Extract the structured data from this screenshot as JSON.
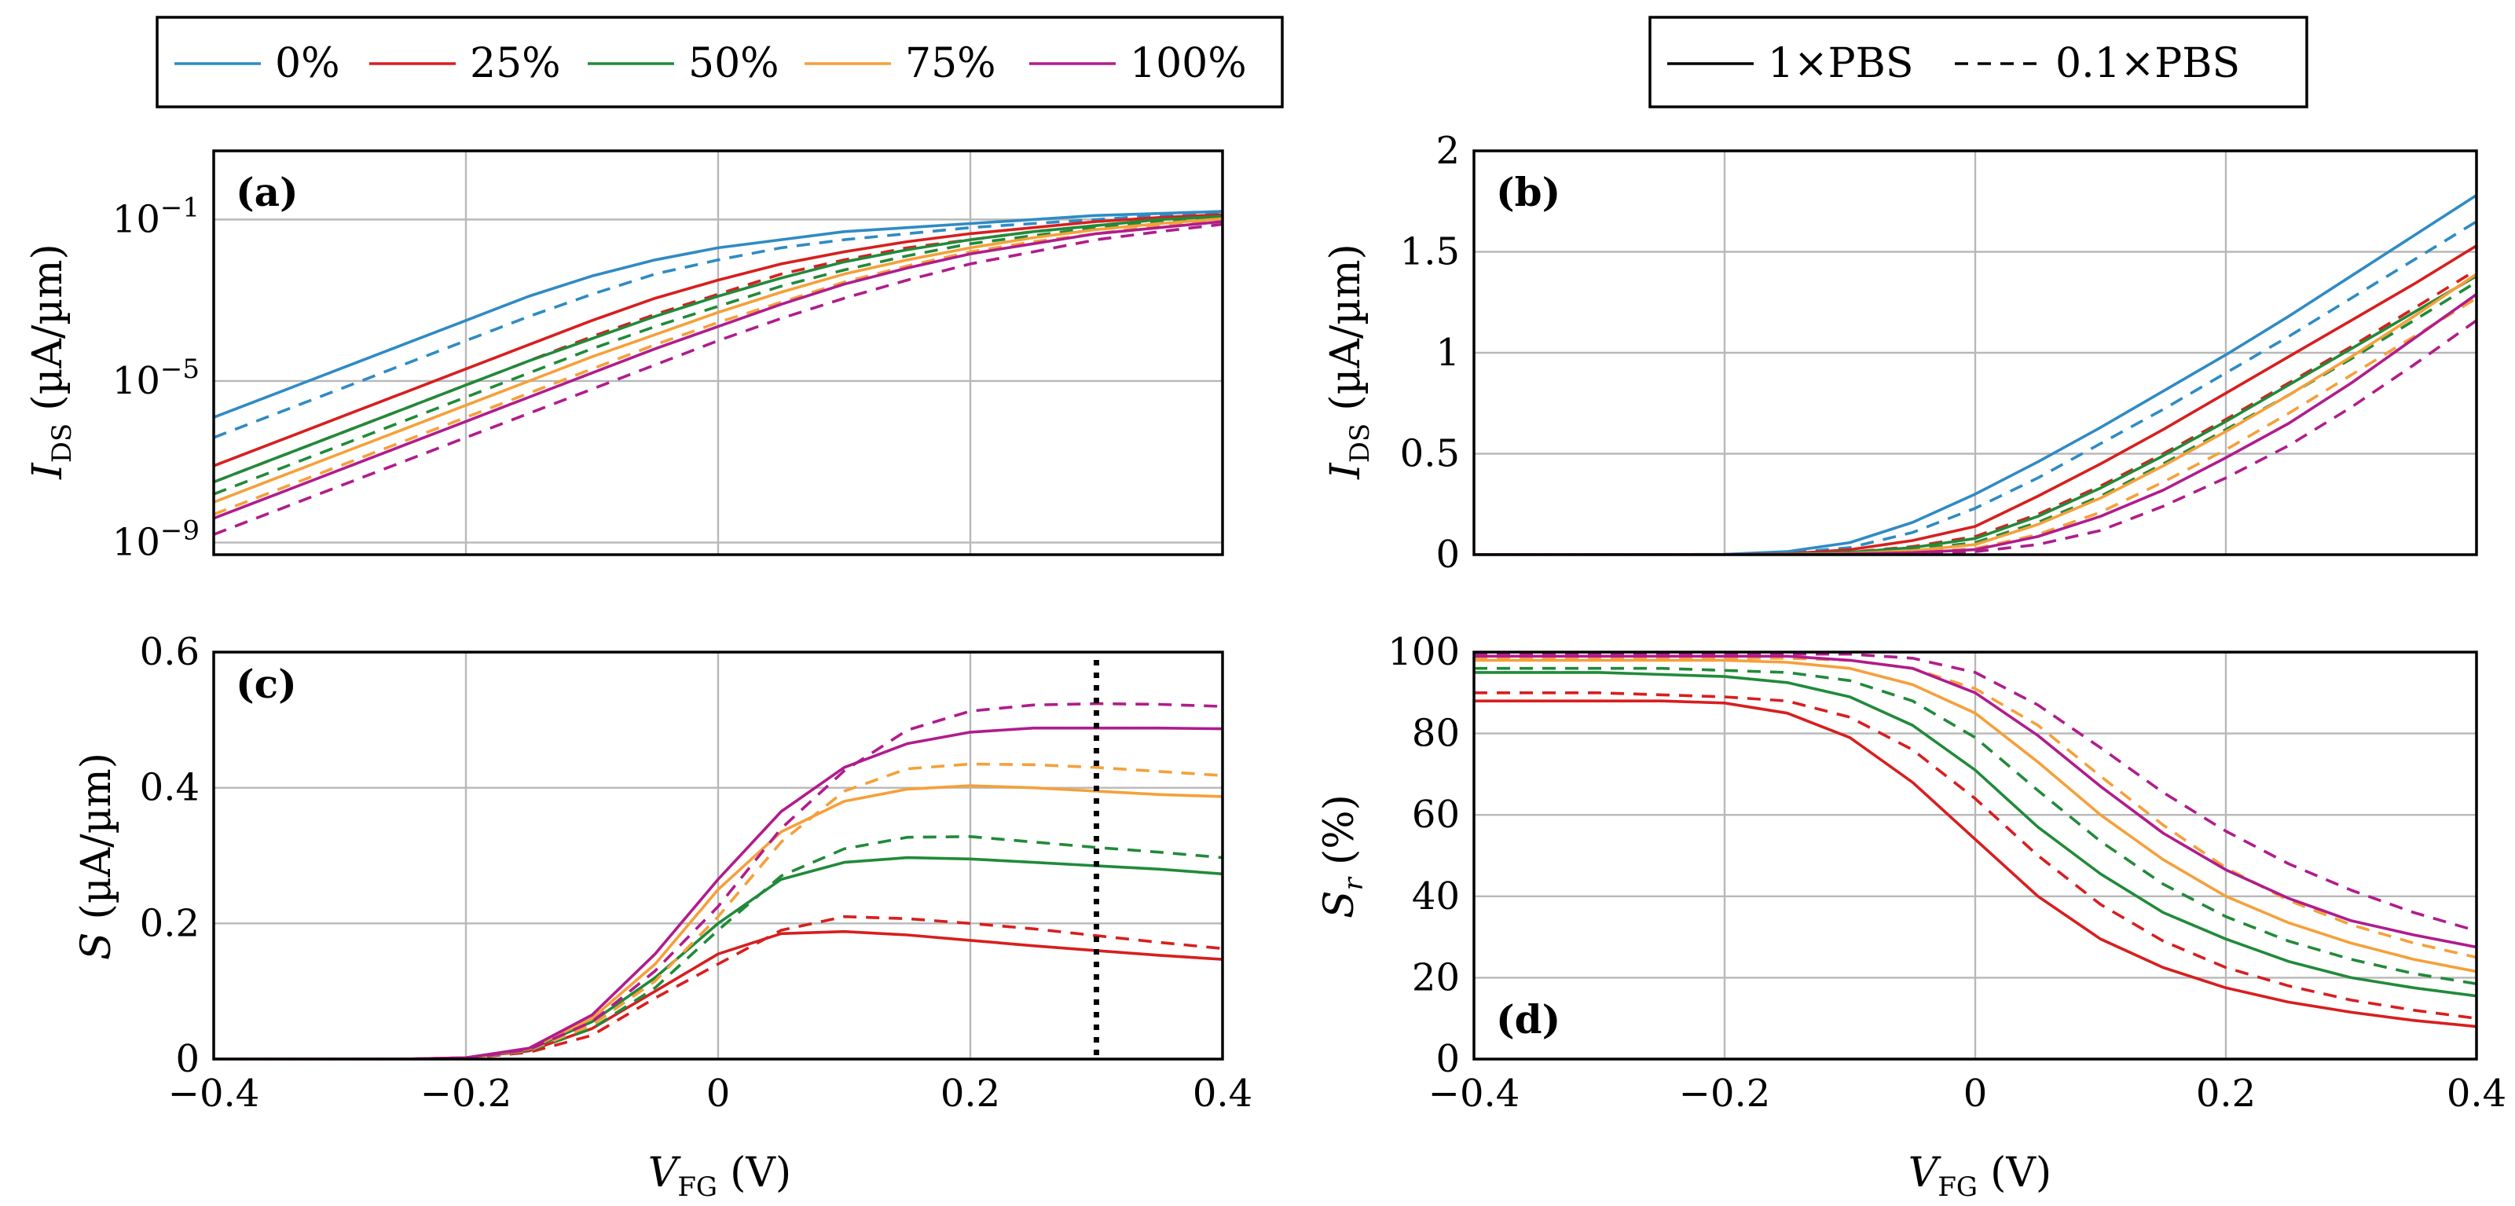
{
  "colors": {
    "0%": "#2f8bc4",
    "25%": "#d81e1e",
    "50%": "#218a3a",
    "75%": "#f5a03a",
    "100%": "#b01c8c"
  },
  "legend_concentration": {
    "items": [
      "0%",
      "25%",
      "50%",
      "75%",
      "100%"
    ]
  },
  "legend_buffer": {
    "solid": "1×PBS",
    "dashed": "0.1×PBS"
  },
  "xaxis": {
    "label_base": "V",
    "label_sub": "FG",
    "label_unit": "(V)",
    "ticks": [
      "−0.4",
      "−0.2",
      "0",
      "0.2",
      "0.4"
    ]
  },
  "chart_data": [
    {
      "panel": "(a)",
      "type": "line",
      "yscale": "log",
      "ylabel": "I_DS (µA/µm)",
      "ylabel_base": "I",
      "ylabel_sub": "DS",
      "ylabel_unit": "(µA/µm)",
      "xlim": [
        -0.4,
        0.4
      ],
      "ylim_exp": [
        -9.3,
        0.7
      ],
      "ytick_labels": [
        {
          "base": "10",
          "exp": "−1",
          "value_exp": -1
        },
        {
          "base": "10",
          "exp": "−5",
          "value_exp": -5
        },
        {
          "base": "10",
          "exp": "−9",
          "value_exp": -9
        }
      ],
      "x": [
        -0.4,
        -0.35,
        -0.3,
        -0.25,
        -0.2,
        -0.15,
        -0.1,
        -0.05,
        0,
        0.05,
        0.1,
        0.15,
        0.2,
        0.25,
        0.3,
        0.35,
        0.4
      ],
      "series": [
        {
          "name": "0%",
          "buffer": "1×PBS",
          "log10": [
            -5.9,
            -5.3,
            -4.7,
            -4.1,
            -3.5,
            -2.9,
            -2.4,
            -2.0,
            -1.7,
            -1.5,
            -1.3,
            -1.2,
            -1.1,
            -1.0,
            -0.9,
            -0.85,
            -0.8
          ]
        },
        {
          "name": "0%",
          "buffer": "0.1×PBS",
          "log10": [
            -6.4,
            -5.8,
            -5.2,
            -4.6,
            -4.0,
            -3.4,
            -2.85,
            -2.35,
            -2.0,
            -1.7,
            -1.5,
            -1.35,
            -1.2,
            -1.1,
            -1.0,
            -0.9,
            -0.85
          ]
        },
        {
          "name": "25%",
          "buffer": "1×PBS",
          "log10": [
            -7.1,
            -6.5,
            -5.9,
            -5.3,
            -4.7,
            -4.1,
            -3.5,
            -2.95,
            -2.5,
            -2.1,
            -1.8,
            -1.55,
            -1.35,
            -1.2,
            -1.05,
            -0.95,
            -0.88
          ]
        },
        {
          "name": "25%",
          "buffer": "0.1×PBS",
          "log10": [
            -7.5,
            -6.9,
            -6.3,
            -5.7,
            -5.1,
            -4.5,
            -3.9,
            -3.35,
            -2.85,
            -2.35,
            -2.0,
            -1.7,
            -1.5,
            -1.3,
            -1.15,
            -1.0,
            -0.9
          ]
        },
        {
          "name": "50%",
          "buffer": "1×PBS",
          "log10": [
            -7.5,
            -6.9,
            -6.3,
            -5.7,
            -5.1,
            -4.5,
            -3.95,
            -3.4,
            -2.9,
            -2.45,
            -2.05,
            -1.75,
            -1.5,
            -1.3,
            -1.15,
            -1.0,
            -0.92
          ]
        },
        {
          "name": "50%",
          "buffer": "0.1×PBS",
          "log10": [
            -7.8,
            -7.2,
            -6.6,
            -6.0,
            -5.4,
            -4.8,
            -4.2,
            -3.65,
            -3.15,
            -2.65,
            -2.25,
            -1.9,
            -1.6,
            -1.4,
            -1.2,
            -1.05,
            -0.95
          ]
        },
        {
          "name": "75%",
          "buffer": "1×PBS",
          "log10": [
            -8.0,
            -7.4,
            -6.8,
            -6.2,
            -5.6,
            -5.0,
            -4.4,
            -3.85,
            -3.3,
            -2.8,
            -2.35,
            -2.0,
            -1.7,
            -1.45,
            -1.25,
            -1.1,
            -0.98
          ]
        },
        {
          "name": "75%",
          "buffer": "0.1×PBS",
          "log10": [
            -8.3,
            -7.7,
            -7.1,
            -6.5,
            -5.9,
            -5.3,
            -4.7,
            -4.1,
            -3.55,
            -3.05,
            -2.55,
            -2.15,
            -1.8,
            -1.55,
            -1.35,
            -1.15,
            -1.02
          ]
        },
        {
          "name": "100%",
          "buffer": "1×PBS",
          "log10": [
            -8.4,
            -7.8,
            -7.2,
            -6.6,
            -6.0,
            -5.4,
            -4.8,
            -4.2,
            -3.65,
            -3.1,
            -2.6,
            -2.2,
            -1.85,
            -1.6,
            -1.35,
            -1.2,
            -1.05
          ]
        },
        {
          "name": "100%",
          "buffer": "0.1×PBS",
          "log10": [
            -8.8,
            -8.2,
            -7.6,
            -7.0,
            -6.4,
            -5.8,
            -5.2,
            -4.6,
            -4.0,
            -3.45,
            -2.95,
            -2.5,
            -2.1,
            -1.8,
            -1.5,
            -1.3,
            -1.12
          ]
        }
      ]
    },
    {
      "panel": "(b)",
      "type": "line",
      "yscale": "linear",
      "ylabel": "I_DS (µA/µm)",
      "ylabel_base": "I",
      "ylabel_sub": "DS",
      "ylabel_unit": "(µA/µm)",
      "xlim": [
        -0.4,
        0.4
      ],
      "ylim": [
        0,
        2
      ],
      "yticks": [
        0,
        0.5,
        1,
        1.5,
        2
      ],
      "ytick_labels": [
        "0",
        "0.5",
        "1",
        "1.5",
        "2"
      ],
      "x": [
        -0.4,
        -0.35,
        -0.3,
        -0.25,
        -0.2,
        -0.15,
        -0.1,
        -0.05,
        0,
        0.05,
        0.1,
        0.15,
        0.2,
        0.25,
        0.3,
        0.35,
        0.4
      ],
      "series": [
        {
          "name": "0%",
          "buffer": "1×PBS",
          "values": [
            0,
            0,
            0,
            0,
            0.002,
            0.015,
            0.06,
            0.16,
            0.3,
            0.46,
            0.63,
            0.81,
            0.99,
            1.18,
            1.38,
            1.58,
            1.78
          ]
        },
        {
          "name": "0%",
          "buffer": "0.1×PBS",
          "values": [
            0,
            0,
            0,
            0,
            0.001,
            0.008,
            0.035,
            0.11,
            0.23,
            0.38,
            0.55,
            0.72,
            0.9,
            1.08,
            1.27,
            1.46,
            1.65
          ]
        },
        {
          "name": "25%",
          "buffer": "1×PBS",
          "values": [
            0,
            0,
            0,
            0,
            0,
            0.004,
            0.025,
            0.07,
            0.14,
            0.29,
            0.45,
            0.62,
            0.8,
            0.98,
            1.16,
            1.34,
            1.53
          ]
        },
        {
          "name": "25%",
          "buffer": "0.1×PBS",
          "values": [
            0,
            0,
            0,
            0,
            0,
            0.002,
            0.012,
            0.04,
            0.09,
            0.2,
            0.34,
            0.5,
            0.67,
            0.85,
            1.03,
            1.22,
            1.41
          ]
        },
        {
          "name": "50%",
          "buffer": "1×PBS",
          "values": [
            0,
            0,
            0,
            0,
            0,
            0.002,
            0.012,
            0.035,
            0.08,
            0.19,
            0.33,
            0.49,
            0.66,
            0.84,
            1.02,
            1.2,
            1.38
          ]
        },
        {
          "name": "50%",
          "buffer": "0.1×PBS",
          "values": [
            0,
            0,
            0,
            0,
            0,
            0.001,
            0.008,
            0.025,
            0.06,
            0.16,
            0.29,
            0.45,
            0.62,
            0.79,
            0.97,
            1.16,
            1.35
          ]
        },
        {
          "name": "75%",
          "buffer": "1×PBS",
          "values": [
            0,
            0,
            0,
            0,
            0,
            0.001,
            0.006,
            0.02,
            0.05,
            0.15,
            0.28,
            0.44,
            0.61,
            0.79,
            0.98,
            1.18,
            1.39
          ]
        },
        {
          "name": "75%",
          "buffer": "0.1×PBS",
          "values": [
            0,
            0,
            0,
            0,
            0,
            0,
            0.004,
            0.012,
            0.03,
            0.1,
            0.21,
            0.36,
            0.52,
            0.7,
            0.89,
            1.08,
            1.27
          ]
        },
        {
          "name": "100%",
          "buffer": "1×PBS",
          "values": [
            0,
            0,
            0,
            0,
            0,
            0,
            0.003,
            0.01,
            0.025,
            0.09,
            0.19,
            0.32,
            0.48,
            0.65,
            0.85,
            1.07,
            1.29
          ]
        },
        {
          "name": "100%",
          "buffer": "0.1×PBS",
          "values": [
            0,
            0,
            0,
            0,
            0,
            0,
            0.002,
            0.006,
            0.015,
            0.05,
            0.12,
            0.24,
            0.38,
            0.54,
            0.73,
            0.94,
            1.16
          ]
        }
      ]
    },
    {
      "panel": "(c)",
      "type": "line",
      "yscale": "linear",
      "ylabel": "S (µA/µm)",
      "ylabel_base": "S",
      "ylabel_sub": "",
      "ylabel_unit": "(µA/µm)",
      "xlim": [
        -0.4,
        0.4
      ],
      "ylim": [
        0,
        0.6
      ],
      "yticks": [
        0,
        0.2,
        0.4,
        0.6
      ],
      "ytick_labels": [
        "0",
        "0.2",
        "0.4",
        "0.6"
      ],
      "vline_x": 0.3,
      "x": [
        -0.4,
        -0.35,
        -0.3,
        -0.25,
        -0.2,
        -0.15,
        -0.1,
        -0.05,
        0,
        0.05,
        0.1,
        0.15,
        0.2,
        0.25,
        0.3,
        0.35,
        0.4
      ],
      "series": [
        {
          "name": "25%",
          "buffer": "1×PBS",
          "values": [
            0,
            0,
            0,
            0,
            0.002,
            0.012,
            0.045,
            0.1,
            0.155,
            0.185,
            0.188,
            0.183,
            0.175,
            0.167,
            0.16,
            0.153,
            0.147
          ]
        },
        {
          "name": "25%",
          "buffer": "0.1×PBS",
          "values": [
            0,
            0,
            0,
            0,
            0.001,
            0.01,
            0.035,
            0.09,
            0.14,
            0.19,
            0.21,
            0.207,
            0.2,
            0.192,
            0.182,
            0.172,
            0.163
          ]
        },
        {
          "name": "50%",
          "buffer": "1×PBS",
          "values": [
            0,
            0,
            0,
            0,
            0.002,
            0.014,
            0.055,
            0.12,
            0.2,
            0.265,
            0.29,
            0.297,
            0.295,
            0.29,
            0.285,
            0.28,
            0.273
          ]
        },
        {
          "name": "50%",
          "buffer": "0.1×PBS",
          "values": [
            0,
            0,
            0,
            0,
            0.001,
            0.012,
            0.045,
            0.105,
            0.19,
            0.27,
            0.31,
            0.327,
            0.328,
            0.32,
            0.312,
            0.305,
            0.297
          ]
        },
        {
          "name": "75%",
          "buffer": "1×PBS",
          "values": [
            0,
            0,
            0,
            0,
            0.002,
            0.015,
            0.06,
            0.14,
            0.25,
            0.335,
            0.38,
            0.398,
            0.403,
            0.4,
            0.395,
            0.39,
            0.387
          ]
        },
        {
          "name": "75%",
          "buffer": "0.1×PBS",
          "values": [
            0,
            0,
            0,
            0,
            0.001,
            0.013,
            0.05,
            0.115,
            0.21,
            0.32,
            0.395,
            0.428,
            0.435,
            0.434,
            0.43,
            0.424,
            0.418
          ]
        },
        {
          "name": "100%",
          "buffer": "1×PBS",
          "values": [
            0,
            0,
            0,
            0,
            0.002,
            0.016,
            0.065,
            0.155,
            0.265,
            0.365,
            0.43,
            0.465,
            0.482,
            0.488,
            0.488,
            0.488,
            0.487
          ]
        },
        {
          "name": "100%",
          "buffer": "0.1×PBS",
          "values": [
            0,
            0,
            0,
            0,
            0.001,
            0.014,
            0.055,
            0.13,
            0.225,
            0.34,
            0.425,
            0.485,
            0.513,
            0.522,
            0.524,
            0.523,
            0.52
          ]
        }
      ]
    },
    {
      "panel": "(d)",
      "type": "line",
      "yscale": "linear",
      "ylabel": "S_r (%)",
      "ylabel_base": "S",
      "ylabel_sub": "r",
      "ylabel_unit": "(%)",
      "xlim": [
        -0.4,
        0.4
      ],
      "ylim": [
        0,
        100
      ],
      "yticks": [
        0,
        20,
        40,
        60,
        80,
        100
      ],
      "ytick_labels": [
        "0",
        "20",
        "40",
        "60",
        "80",
        "100"
      ],
      "x": [
        -0.4,
        -0.35,
        -0.3,
        -0.25,
        -0.2,
        -0.15,
        -0.1,
        -0.05,
        0,
        0.05,
        0.1,
        0.15,
        0.2,
        0.25,
        0.3,
        0.35,
        0.4
      ],
      "series": [
        {
          "name": "25%",
          "buffer": "1×PBS",
          "values": [
            88,
            88,
            88,
            88,
            87.5,
            85,
            79,
            68,
            54,
            40,
            29.5,
            22.5,
            17.5,
            14,
            11.5,
            9.5,
            8
          ]
        },
        {
          "name": "25%",
          "buffer": "0.1×PBS",
          "values": [
            90,
            90,
            90,
            89.5,
            89,
            88,
            84,
            76,
            64,
            50,
            38,
            29,
            22.5,
            18,
            14.5,
            12,
            10
          ]
        },
        {
          "name": "50%",
          "buffer": "1×PBS",
          "values": [
            95,
            95,
            95,
            94.5,
            94,
            92.5,
            89,
            82,
            71,
            57,
            45.5,
            36,
            29.5,
            24,
            20,
            17.5,
            15.5
          ]
        },
        {
          "name": "50%",
          "buffer": "0.1×PBS",
          "values": [
            96,
            96,
            96,
            96,
            95.5,
            95,
            93,
            88,
            79,
            66,
            53.5,
            43,
            35,
            29,
            24.5,
            21,
            18.5
          ]
        },
        {
          "name": "75%",
          "buffer": "1×PBS",
          "values": [
            98,
            98,
            98,
            98,
            98,
            97.5,
            96,
            92,
            85,
            73,
            60,
            49,
            40,
            33.5,
            28.5,
            24.5,
            21.5
          ]
        },
        {
          "name": "75%",
          "buffer": "0.1×PBS",
          "values": [
            98.5,
            98.5,
            98.5,
            98.5,
            98.5,
            98.5,
            98,
            96,
            91,
            82,
            69.5,
            57.5,
            47,
            39,
            33,
            28.5,
            25
          ]
        },
        {
          "name": "100%",
          "buffer": "1×PBS",
          "values": [
            99,
            99,
            99,
            99,
            99,
            99,
            98,
            96,
            90,
            79.5,
            67,
            55.5,
            46.5,
            39.5,
            34,
            30.5,
            27.5
          ]
        },
        {
          "name": "100%",
          "buffer": "0.1×PBS",
          "values": [
            99.5,
            99.5,
            99.5,
            99.5,
            99.5,
            99.5,
            99.5,
            98.5,
            95,
            87,
            76.5,
            65.5,
            56,
            48,
            41.5,
            36,
            31.5
          ]
        }
      ]
    }
  ]
}
